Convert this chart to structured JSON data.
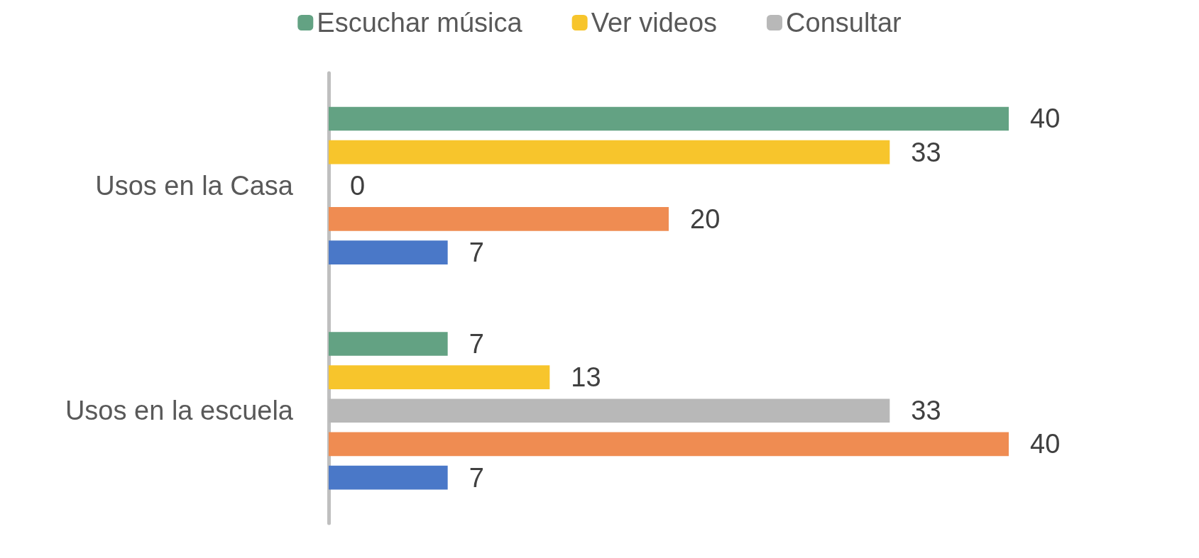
{
  "chart_data": {
    "type": "bar",
    "orientation": "horizontal",
    "categories": [
      "Usos en la Casa",
      "Usos en la escuela"
    ],
    "series": [
      {
        "color": "#4a78c8",
        "values": [
          7,
          7
        ]
      },
      {
        "color": "#ef8c52",
        "values": [
          20,
          40
        ]
      },
      {
        "name": "Consultar",
        "color": "#b8b8b8",
        "values": [
          0,
          33
        ]
      },
      {
        "name": "Ver videos",
        "color": "#f7c52c",
        "values": [
          33,
          13
        ]
      },
      {
        "name": "Escuchar música",
        "color": "#63a283",
        "values": [
          40,
          7
        ]
      }
    ],
    "data_labels": true,
    "legend": "top",
    "grid": false,
    "tick_labels": "y"
  }
}
